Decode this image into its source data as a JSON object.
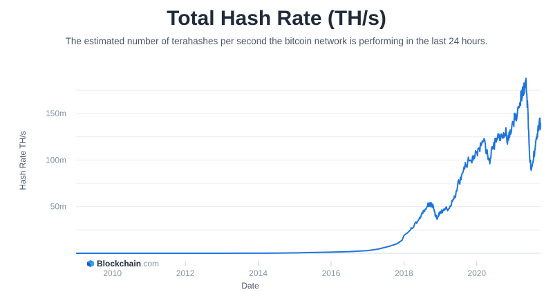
{
  "header": {
    "title": "Total Hash Rate (TH/s)",
    "subtitle": "The estimated number of terahashes per second the bitcoin network is performing in the last 24 hours."
  },
  "brand": {
    "name": "Blockchain",
    "suffix": ".com",
    "icon": "blockchain-cube-icon"
  },
  "colors": {
    "line": "#1e74dd",
    "grid": "#e8ebef",
    "axis_text": "#8793a6",
    "title": "#1f2b3a"
  },
  "chart_data": {
    "type": "line",
    "title": "Total Hash Rate (TH/s)",
    "xlabel": "Date",
    "ylabel": "Hash Rate TH/s",
    "xlim": [
      2009.0,
      2021.75
    ],
    "ylim": [
      0,
      190000000
    ],
    "grid": true,
    "x_ticks": [
      2010,
      2012,
      2014,
      2016,
      2018,
      2020
    ],
    "x_tick_labels": [
      "2010",
      "2012",
      "2014",
      "2016",
      "2018",
      "2020"
    ],
    "y_ticks": [
      50000000,
      100000000,
      150000000
    ],
    "y_tick_labels": [
      "50m",
      "100m",
      "150m"
    ],
    "series": [
      {
        "values": [
          [
            2009.0,
            0
          ],
          [
            2013.0,
            0
          ],
          [
            2014.0,
            0.1
          ],
          [
            2015.0,
            0.4
          ],
          [
            2016.0,
            1.2
          ],
          [
            2016.5,
            1.8
          ],
          [
            2017.0,
            2.8
          ],
          [
            2017.3,
            4.5
          ],
          [
            2017.6,
            7.5
          ],
          [
            2017.8,
            10
          ],
          [
            2017.95,
            14
          ],
          [
            2018.0,
            19
          ],
          [
            2018.1,
            22
          ],
          [
            2018.2,
            26
          ],
          [
            2018.3,
            31
          ],
          [
            2018.4,
            36
          ],
          [
            2018.5,
            42
          ],
          [
            2018.6,
            48
          ],
          [
            2018.65,
            51
          ],
          [
            2018.7,
            53
          ],
          [
            2018.75,
            52
          ],
          [
            2018.8,
            50
          ],
          [
            2018.85,
            43
          ],
          [
            2018.9,
            37
          ],
          [
            2018.95,
            41
          ],
          [
            2019.0,
            44
          ],
          [
            2019.1,
            46
          ],
          [
            2019.2,
            48
          ],
          [
            2019.3,
            53
          ],
          [
            2019.4,
            60
          ],
          [
            2019.5,
            75
          ],
          [
            2019.6,
            84
          ],
          [
            2019.7,
            95
          ],
          [
            2019.8,
            100
          ],
          [
            2019.9,
            103
          ],
          [
            2020.0,
            108
          ],
          [
            2020.1,
            113
          ],
          [
            2020.2,
            118
          ],
          [
            2020.3,
            105
          ],
          [
            2020.35,
            96
          ],
          [
            2020.4,
            110
          ],
          [
            2020.5,
            118
          ],
          [
            2020.6,
            125
          ],
          [
            2020.7,
            128
          ],
          [
            2020.8,
            132
          ],
          [
            2020.85,
            118
          ],
          [
            2020.9,
            127
          ],
          [
            2021.0,
            140
          ],
          [
            2021.1,
            150
          ],
          [
            2021.2,
            165
          ],
          [
            2021.25,
            170
          ],
          [
            2021.3,
            178
          ],
          [
            2021.35,
            182
          ],
          [
            2021.4,
            155
          ],
          [
            2021.45,
            105
          ],
          [
            2021.5,
            87
          ],
          [
            2021.55,
            100
          ],
          [
            2021.6,
            115
          ],
          [
            2021.65,
            125
          ],
          [
            2021.7,
            136
          ],
          [
            2021.75,
            140
          ]
        ],
        "unit_multiplier": 1000000
      }
    ]
  }
}
